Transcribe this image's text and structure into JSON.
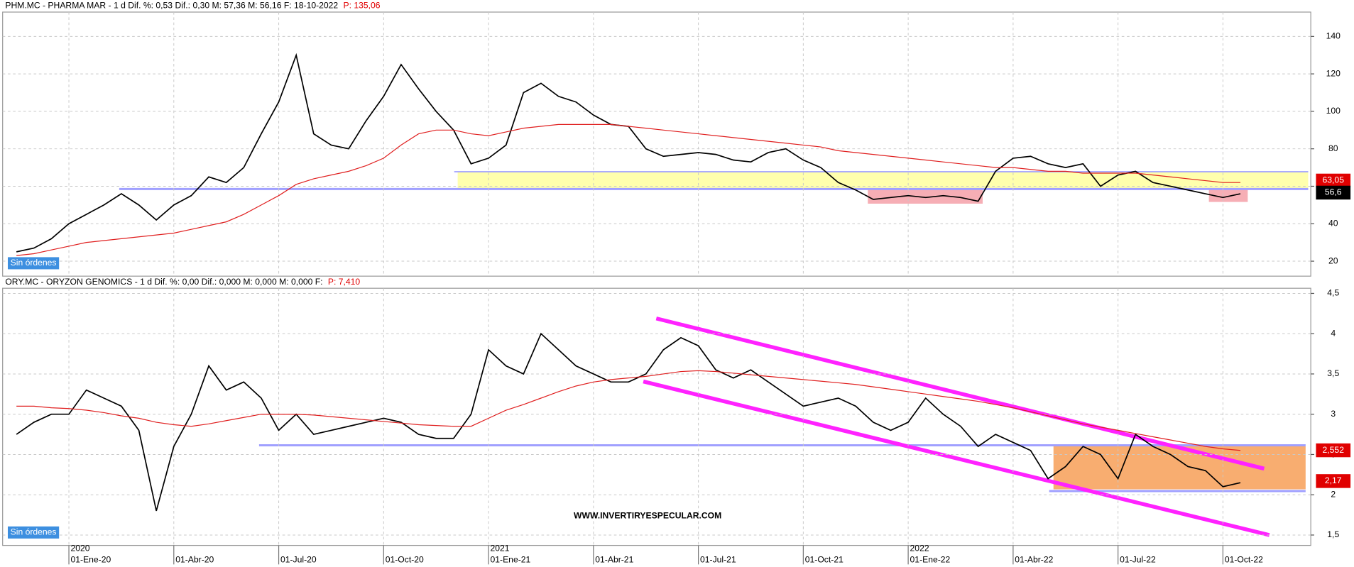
{
  "x_axis": {
    "categories": [
      null,
      null,
      null,
      "01-Ene-20",
      null,
      null,
      null,
      null,
      null,
      "01-Abr-20",
      null,
      null,
      null,
      null,
      null,
      "01-Jul-20",
      null,
      null,
      null,
      null,
      null,
      "01-Oct-20",
      null,
      null,
      null,
      null,
      null,
      "01-Ene-21",
      null,
      null,
      null,
      null,
      null,
      "01-Abr-21",
      null,
      null,
      null,
      null,
      null,
      "01-Jul-21",
      null,
      null,
      null,
      null,
      null,
      "01-Oct-21",
      null,
      null,
      null,
      null,
      null,
      "01-Ene-22",
      null,
      null,
      null,
      null,
      null,
      "01-Abr-22",
      null,
      null,
      null,
      null,
      null,
      "01-Jul-22",
      null,
      null,
      null,
      null,
      null,
      "01-Oct-22",
      null
    ],
    "year_labels": [
      "2020",
      "2021",
      "2022"
    ]
  },
  "chart_data": [
    {
      "type": "line",
      "title": "PHM.MC - PHARMA MAR -  1 d  Dif. %: 0,53  Dif.: 0,30  M: 57,36  M: 56,16  F: 18-10-2022",
      "price_label": "P: 135,06",
      "status": "Sin órdenes",
      "ylim": [
        12,
        153
      ],
      "yticks": [
        20,
        40,
        60,
        80,
        100,
        120,
        140
      ],
      "grid": true,
      "series": [
        {
          "color": "#000000",
          "values": [
            25,
            27,
            32,
            40,
            45,
            50,
            56,
            50,
            42,
            50,
            55,
            65,
            62,
            70,
            88,
            105,
            130,
            88,
            82,
            80,
            95,
            108,
            125,
            112,
            100,
            90,
            72,
            75,
            82,
            110,
            115,
            108,
            105,
            98,
            93,
            92,
            80,
            76,
            77,
            78,
            77,
            74,
            73,
            78,
            80,
            74,
            70,
            62,
            58,
            53,
            54,
            55,
            54,
            55,
            54,
            52,
            68,
            75,
            76,
            72,
            70,
            72,
            60,
            66,
            68,
            62,
            60,
            58,
            56,
            54,
            56
          ]
        },
        {
          "color": "#e02020",
          "values": [
            23,
            24,
            26,
            28,
            30,
            31,
            32,
            33,
            34,
            35,
            37,
            39,
            41,
            45,
            50,
            55,
            61,
            64,
            66,
            68,
            71,
            75,
            82,
            88,
            90,
            90,
            88,
            87,
            89,
            91,
            92,
            93,
            93,
            93,
            93,
            92,
            91,
            90,
            89,
            88,
            87,
            86,
            85,
            84,
            83,
            82,
            81,
            79,
            78,
            77,
            76,
            75,
            74,
            73,
            72,
            71,
            70,
            70,
            69,
            68,
            68,
            67,
            67,
            67,
            67,
            66,
            65,
            64,
            63,
            62,
            62
          ]
        }
      ],
      "markers": [
        {
          "value": 63.05,
          "label": "63,05",
          "color": "#e00000"
        },
        {
          "value": 56.6,
          "label": "56,6",
          "color": "#000000"
        }
      ]
    },
    {
      "type": "line",
      "title": "ORY.MC - ORYZON GENOMICS -  1 d  Dif. %: 0,00  Dif.: 0,000  M: 0,000  M: 0,000  F:",
      "price_label": "P: 7,410",
      "status": "Sin órdenes",
      "annotation": "WWW.INVERTIRYESPECULAR.COM",
      "ylim": [
        1.371,
        4.564
      ],
      "yticks": [
        {
          "value": 1.5,
          "label": "1,5"
        },
        2,
        {
          "value": 2.5,
          "label": "2,5"
        },
        3,
        {
          "value": 3.5,
          "label": "3,5"
        },
        4,
        {
          "value": 4.5,
          "label": "4,5"
        }
      ],
      "grid": true,
      "series": [
        {
          "color": "#000000",
          "values": [
            2.75,
            2.9,
            3.0,
            3.0,
            3.3,
            3.2,
            3.1,
            2.8,
            1.8,
            2.6,
            3.0,
            3.6,
            3.3,
            3.4,
            3.2,
            2.8,
            3.0,
            2.75,
            2.8,
            2.85,
            2.9,
            2.95,
            2.9,
            2.75,
            2.7,
            2.7,
            3.0,
            3.8,
            3.6,
            3.5,
            4.0,
            3.8,
            3.6,
            3.5,
            3.4,
            3.4,
            3.5,
            3.8,
            3.95,
            3.85,
            3.55,
            3.45,
            3.55,
            3.4,
            3.25,
            3.1,
            3.15,
            3.2,
            3.1,
            2.9,
            2.8,
            2.9,
            3.2,
            3.0,
            2.85,
            2.6,
            2.75,
            2.65,
            2.55,
            2.2,
            2.35,
            2.6,
            2.5,
            2.2,
            2.75,
            2.6,
            2.5,
            2.35,
            2.3,
            2.1,
            2.15
          ]
        },
        {
          "color": "#e02020",
          "values": [
            3.1,
            3.1,
            3.08,
            3.07,
            3.05,
            3.02,
            2.98,
            2.95,
            2.9,
            2.87,
            2.85,
            2.88,
            2.92,
            2.96,
            3.0,
            3.0,
            3.0,
            2.99,
            2.97,
            2.95,
            2.93,
            2.91,
            2.89,
            2.87,
            2.86,
            2.85,
            2.85,
            2.95,
            3.05,
            3.12,
            3.2,
            3.28,
            3.35,
            3.4,
            3.43,
            3.45,
            3.47,
            3.5,
            3.53,
            3.54,
            3.53,
            3.51,
            3.49,
            3.47,
            3.45,
            3.43,
            3.41,
            3.39,
            3.37,
            3.34,
            3.31,
            3.28,
            3.25,
            3.22,
            3.19,
            3.16,
            3.12,
            3.08,
            3.03,
            2.98,
            2.93,
            2.88,
            2.84,
            2.8,
            2.76,
            2.72,
            2.68,
            2.64,
            2.6,
            2.57,
            2.55
          ]
        }
      ],
      "markers": [
        {
          "value": 2.552,
          "label": "2,552",
          "color": "#e00000"
        },
        {
          "value": 2.17,
          "label": "2,17",
          "color": "#e00000"
        }
      ]
    }
  ]
}
